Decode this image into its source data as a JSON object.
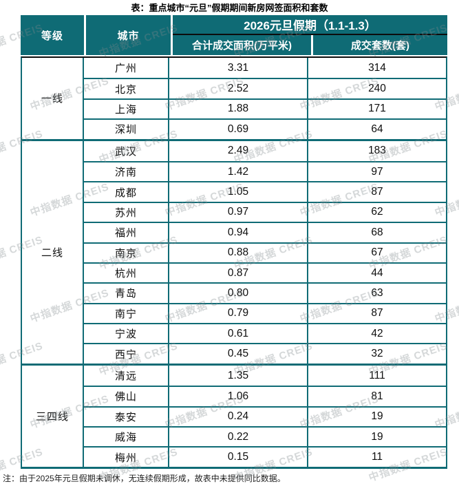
{
  "title": "表：重点城市“元旦”假期期间新房网签面积和套数",
  "table": {
    "header": {
      "level": "等级",
      "city": "城市",
      "period": "2026元旦假期（1.1-1.3）",
      "area": "合计成交面积(万平米)",
      "units": "成交套数(套)"
    },
    "groups": [
      {
        "level": "一线",
        "rows": [
          {
            "city": "广州",
            "area": "3.31",
            "units": "314"
          },
          {
            "city": "北京",
            "area": "2.52",
            "units": "240"
          },
          {
            "city": "上海",
            "area": "1.88",
            "units": "171"
          },
          {
            "city": "深圳",
            "area": "0.69",
            "units": "64"
          }
        ]
      },
      {
        "level": "二线",
        "rows": [
          {
            "city": "武汉",
            "area": "2.49",
            "units": "183"
          },
          {
            "city": "济南",
            "area": "1.42",
            "units": "97"
          },
          {
            "city": "成都",
            "area": "1.05",
            "units": "87"
          },
          {
            "city": "苏州",
            "area": "0.97",
            "units": "62"
          },
          {
            "city": "福州",
            "area": "0.94",
            "units": "68"
          },
          {
            "city": "南京",
            "area": "0.88",
            "units": "67"
          },
          {
            "city": "杭州",
            "area": "0.87",
            "units": "44"
          },
          {
            "city": "青岛",
            "area": "0.80",
            "units": "63"
          },
          {
            "city": "南宁",
            "area": "0.79",
            "units": "87"
          },
          {
            "city": "宁波",
            "area": "0.61",
            "units": "42"
          },
          {
            "city": "西宁",
            "area": "0.45",
            "units": "32"
          }
        ]
      },
      {
        "level": "三四线",
        "rows": [
          {
            "city": "清远",
            "area": "1.35",
            "units": "111"
          },
          {
            "city": "佛山",
            "area": "1.06",
            "units": "81"
          },
          {
            "city": "泰安",
            "area": "0.24",
            "units": "19"
          },
          {
            "city": "威海",
            "area": "0.22",
            "units": "19"
          },
          {
            "city": "梅州",
            "area": "0.15",
            "units": "11"
          }
        ]
      }
    ]
  },
  "note": "注：由于2025年元旦假期未调休，无连续假期形成，故表中未提供同比数据。",
  "watermark_text": "中指数据 CREIS",
  "colors": {
    "header_bg": "#0f6b75",
    "border": "#0f6b75",
    "header_text": "#ffffff",
    "divider_black": "#0c0c0c",
    "watermark": "#80888b"
  }
}
